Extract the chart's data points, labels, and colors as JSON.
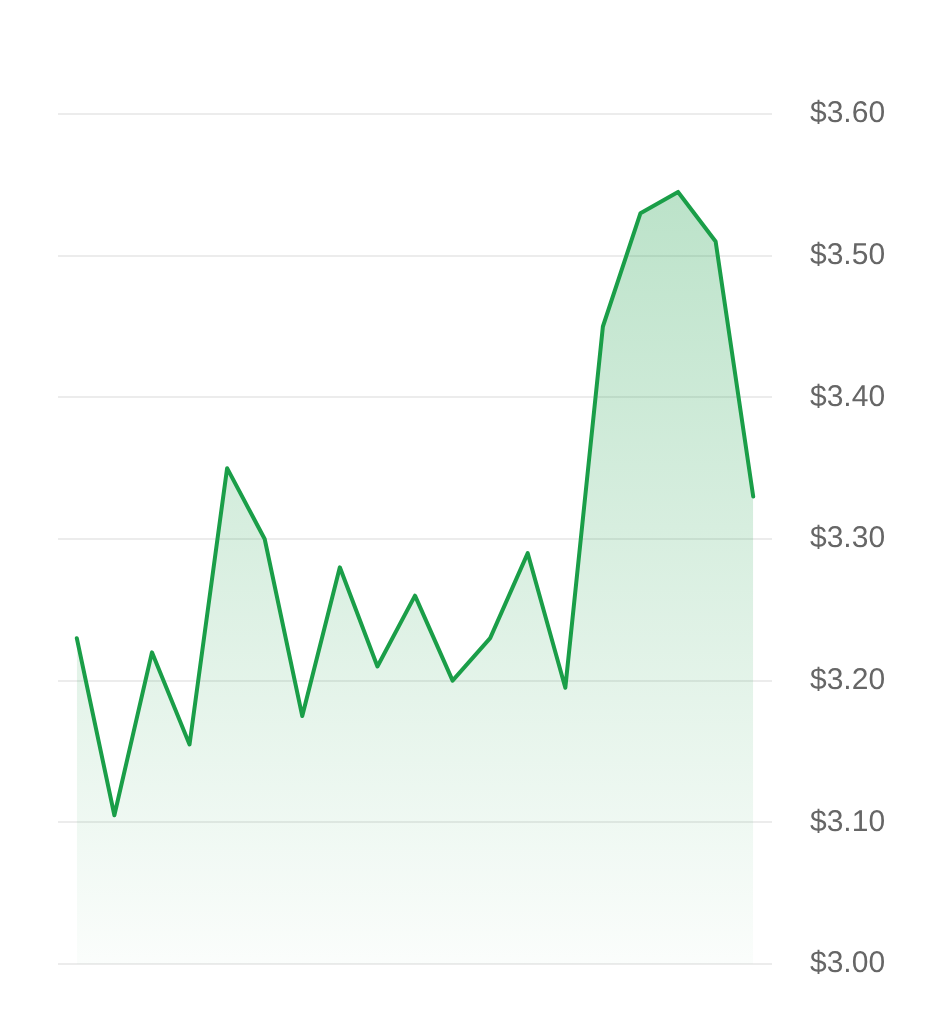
{
  "chart_data": {
    "type": "area",
    "categories": [
      null,
      null,
      null,
      null,
      null,
      null,
      null,
      null,
      null,
      null,
      null,
      null,
      null,
      null,
      null,
      null,
      null,
      null,
      null
    ],
    "series": [
      {
        "color": "#1a9e48",
        "values": [
          3.23,
          3.105,
          3.22,
          3.155,
          3.35,
          3.3,
          3.175,
          3.28,
          3.21,
          3.26,
          3.2,
          3.23,
          3.29,
          3.195,
          3.45,
          3.53,
          3.545,
          3.51,
          3.33
        ]
      }
    ],
    "ylim": [
      3.0,
      3.6
    ],
    "yticks": [
      {
        "value": 3.0,
        "label": "$3.00"
      },
      {
        "value": 3.1,
        "label": "$3.10"
      },
      {
        "value": 3.2,
        "label": "$3.20"
      },
      {
        "value": 3.3,
        "label": "$3.30"
      },
      {
        "value": 3.4,
        "label": "$3.40"
      },
      {
        "value": 3.5,
        "label": "$3.50"
      },
      {
        "value": 3.6,
        "label": "$3.60"
      }
    ],
    "grid": "y",
    "marker": "none",
    "line_style": "solid"
  }
}
